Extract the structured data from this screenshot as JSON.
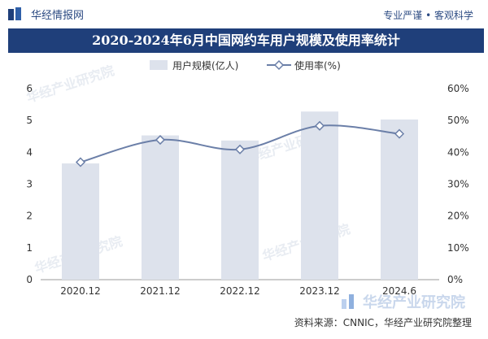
{
  "header": {
    "brand": "华经情报网",
    "slogan": "专业严谨 • 客观科学"
  },
  "title": "2020-2024年6月中国网约车用户规模及使用率统计",
  "watermark_text": "华经产业研究院",
  "footer": {
    "source": "资料来源：CNNIC，华经产业研究院整理",
    "brand": "华经产业研究院"
  },
  "chart_data": {
    "type": "bar",
    "categories": [
      "2020.12",
      "2021.12",
      "2022.12",
      "2023.12",
      "2024.6"
    ],
    "series": [
      {
        "name": "用户规模(亿人)",
        "type": "bar",
        "axis": "left",
        "values": [
          3.65,
          4.53,
          4.37,
          5.28,
          5.03
        ],
        "color": "#dde2ec"
      },
      {
        "name": "使用率(%)",
        "type": "line",
        "axis": "right",
        "values": [
          36.9,
          43.9,
          40.9,
          48.3,
          45.8
        ],
        "color": "#6b7fa8"
      }
    ],
    "y_left": {
      "min": 0,
      "max": 6,
      "ticks": [
        "0",
        "1",
        "2",
        "3",
        "4",
        "5",
        "6"
      ]
    },
    "y_right": {
      "min": 0,
      "max": 60,
      "ticks": [
        "0%",
        "10%",
        "20%",
        "30%",
        "40%",
        "50%",
        "60%"
      ]
    },
    "legend_position": "top-center",
    "grid": false
  }
}
